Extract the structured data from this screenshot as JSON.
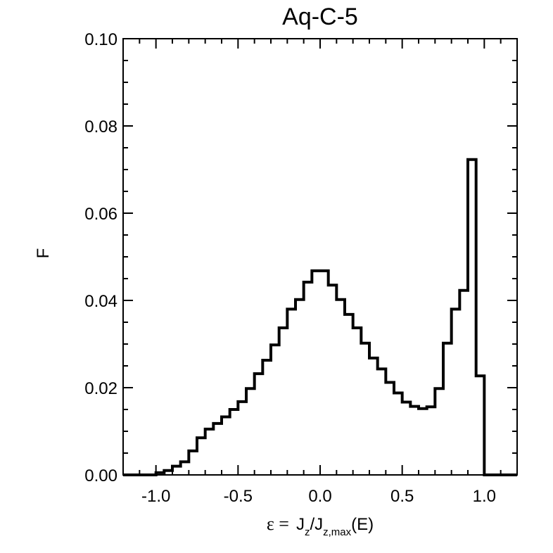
{
  "chart_data": {
    "type": "step",
    "title": "Aq-C-5",
    "ylabel": "F",
    "xlabel": {
      "epsilon": "ε =",
      "j1": "J",
      "j1_sub": "z",
      "slash": "/J",
      "j2_sub": "z,max",
      "tail": "(E)"
    },
    "xlim": [
      -1.2,
      1.2
    ],
    "ylim": [
      0.0,
      0.1
    ],
    "xticks": [
      -1.0,
      -0.5,
      0.0,
      0.5,
      1.0
    ],
    "xtick_labels": [
      "-1.0",
      "-0.5",
      "0.0",
      "0.5",
      "1.0"
    ],
    "yticks": [
      0.0,
      0.02,
      0.04,
      0.06,
      0.08,
      0.1
    ],
    "ytick_labels": [
      "0.00",
      "0.02",
      "0.04",
      "0.06",
      "0.08",
      "0.10"
    ],
    "bin_width": 0.05,
    "bin_start": -1.2,
    "values": [
      0.0,
      0.0,
      0.0,
      0.0,
      0.0005,
      0.001,
      0.002,
      0.003,
      0.0055,
      0.0085,
      0.0105,
      0.0118,
      0.0133,
      0.015,
      0.0168,
      0.0198,
      0.0232,
      0.0263,
      0.0298,
      0.0337,
      0.038,
      0.0402,
      0.0442,
      0.0468,
      0.0468,
      0.0435,
      0.0402,
      0.0368,
      0.0337,
      0.0302,
      0.0268,
      0.0243,
      0.0212,
      0.0188,
      0.0167,
      0.0157,
      0.0152,
      0.0156,
      0.0198,
      0.0302,
      0.038,
      0.0423,
      0.0723,
      0.0227,
      0.0,
      0.0,
      0.0,
      0.0
    ]
  }
}
